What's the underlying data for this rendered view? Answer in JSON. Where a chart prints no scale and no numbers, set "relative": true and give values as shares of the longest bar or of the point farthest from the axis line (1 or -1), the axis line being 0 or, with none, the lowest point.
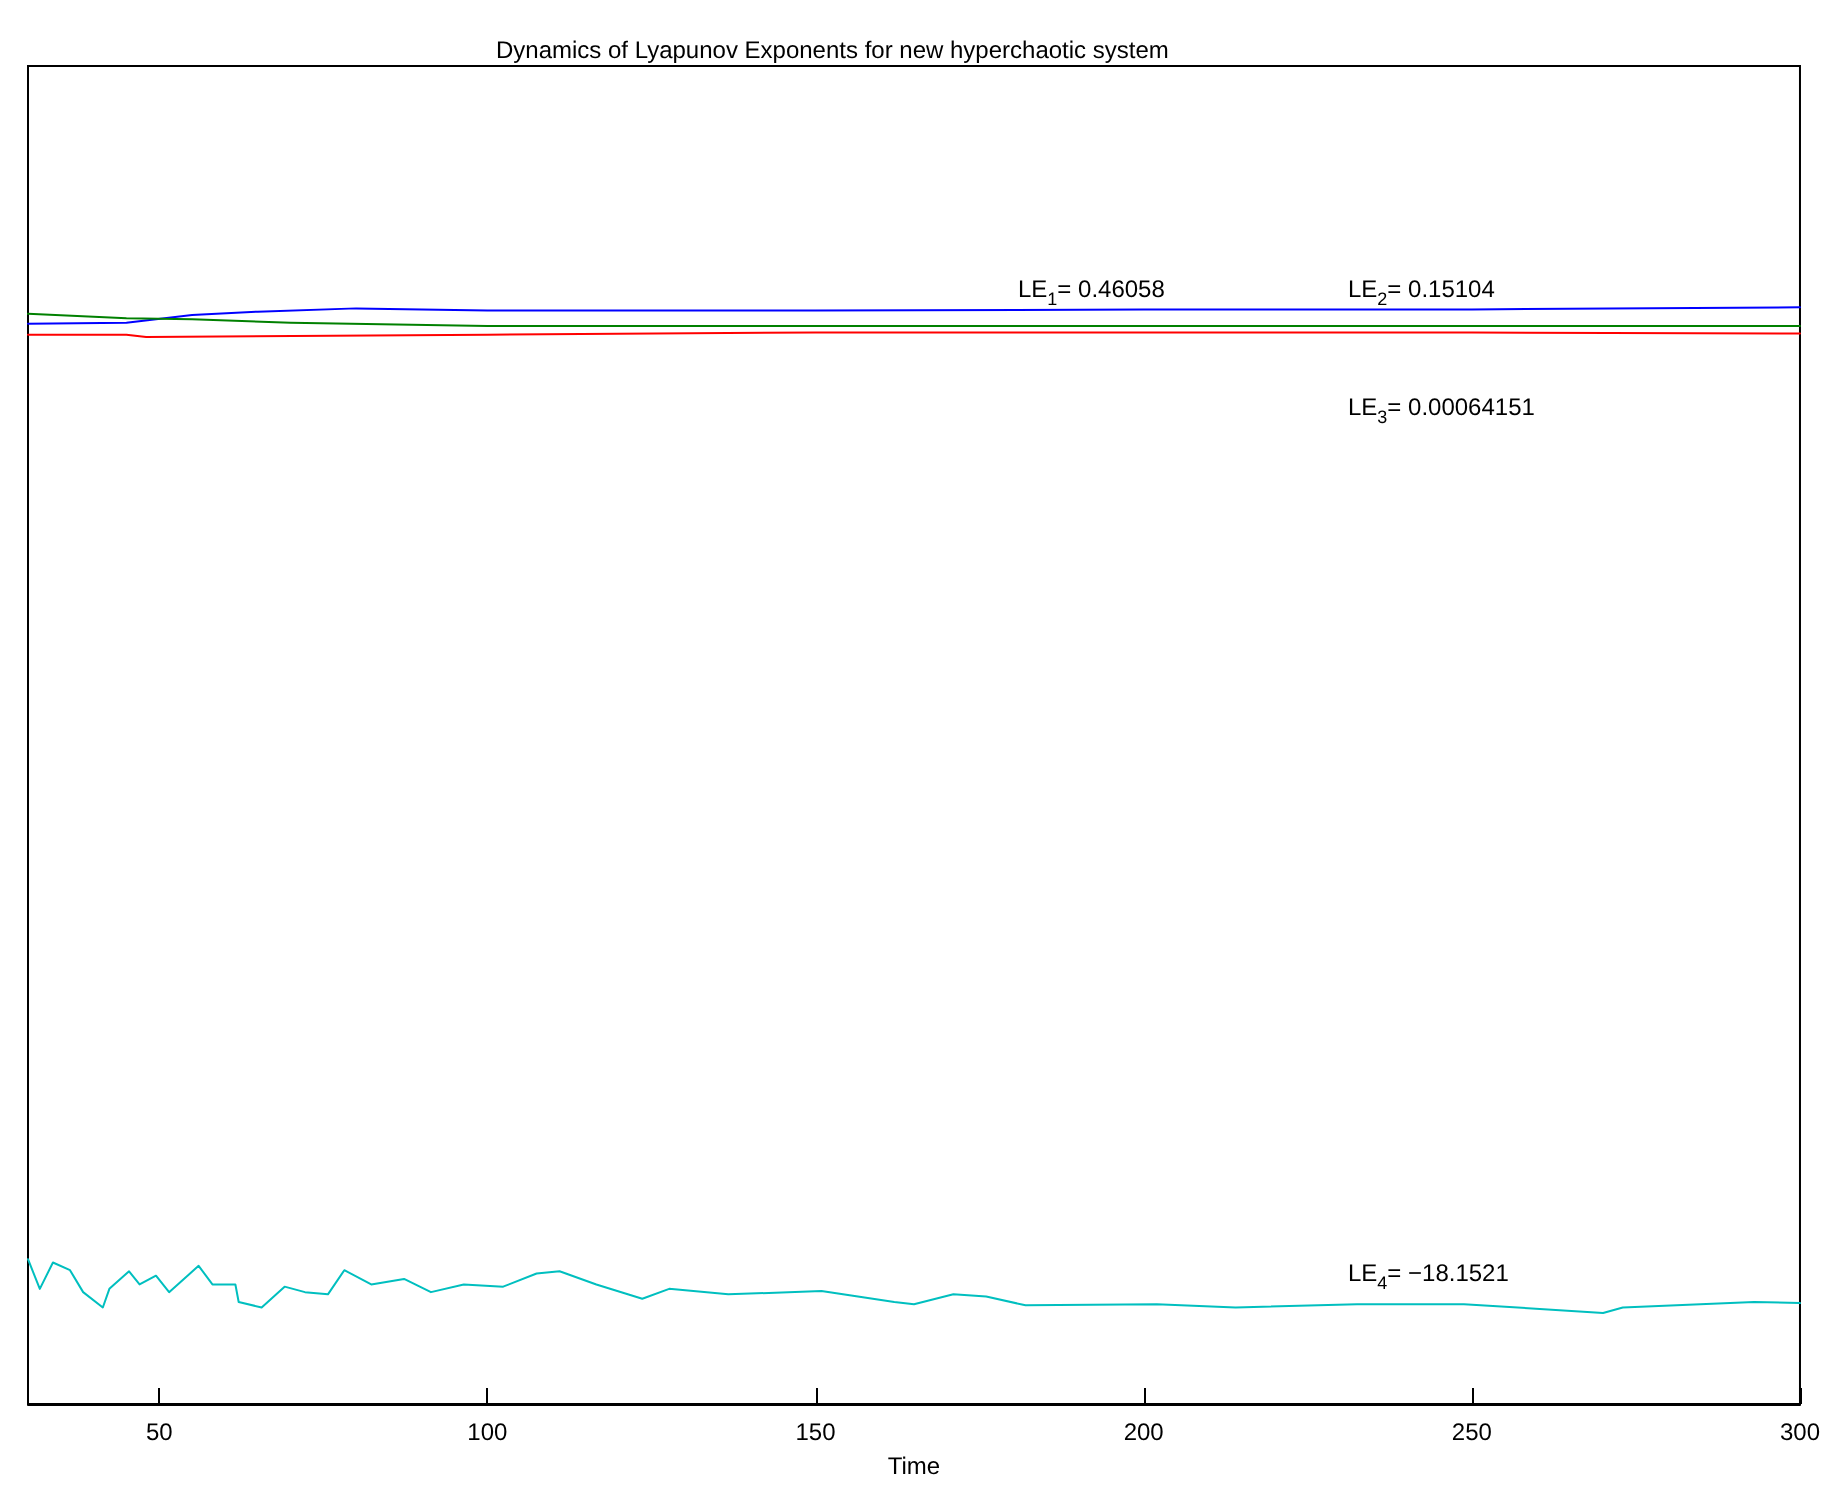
{
  "chart_data": {
    "type": "line",
    "title": "Dynamics of Lyapunov Exponents for new hyperchaotic system",
    "xlabel": "Time",
    "relative": true,
    "xlim": [
      30,
      300
    ],
    "xticks": [
      50,
      100,
      150,
      200,
      250,
      300
    ],
    "grid": false,
    "marker": "none",
    "line_style": "solid",
    "series": [
      {
        "color": "#0000ff",
        "x": [
          30,
          45,
          55,
          65,
          80,
          100,
          150,
          200,
          250,
          300
        ],
        "values": [
          0.985,
          0.986,
          0.993,
          0.996,
          0.999,
          0.997,
          0.997,
          0.998,
          0.998,
          1
        ]
      },
      {
        "color": "#008000",
        "x": [
          30,
          45,
          55,
          70,
          100,
          150,
          200,
          250,
          300
        ],
        "values": [
          0.994,
          0.99,
          0.989,
          0.986,
          0.983,
          0.983,
          0.983,
          0.983,
          0.983
        ]
      },
      {
        "color": "#ff0000",
        "x": [
          30,
          45,
          48,
          100,
          150,
          200,
          250,
          300
        ],
        "values": [
          0.975,
          0.975,
          0.973,
          0.975,
          0.977,
          0.977,
          0.977,
          0.976
        ]
      },
      {
        "color": "#00bfbf",
        "x": [
          30,
          31.8,
          33.8,
          36.4,
          38.4,
          41.4,
          42.4,
          45.4,
          47,
          49.5,
          51.5,
          56,
          58.1,
          61.6,
          62.1,
          65.6,
          69.1,
          72.2,
          75.7,
          78.2,
          82.3,
          87.3,
          91.4,
          96.4,
          102.4,
          107.5,
          111,
          116.6,
          123.6,
          127.7,
          136.7,
          150.9,
          162,
          165,
          171,
          176,
          182,
          202,
          214,
          232.5,
          248.8,
          270,
          273,
          293,
          300
        ],
        "values": [
          0.132,
          0.105,
          0.129,
          0.122,
          0.102,
          0.088,
          0.105,
          0.121,
          0.109,
          0.117,
          0.102,
          0.126,
          0.109,
          0.109,
          0.093,
          0.088,
          0.107,
          0.102,
          0.1,
          0.122,
          0.109,
          0.114,
          0.102,
          0.109,
          0.107,
          0.119,
          0.121,
          0.109,
          0.096,
          0.105,
          0.1,
          0.103,
          0.093,
          0.091,
          0.1,
          0.098,
          0.09,
          0.091,
          0.088,
          0.091,
          0.091,
          0.083,
          0.088,
          0.093,
          0.092
        ]
      }
    ],
    "annotations": [
      "LE$_{1}$= 0.46058",
      "LE$_{2}$= 0.15104",
      "LE$_{3}$= 0.00064151",
      "LE$_{4}$= −18.1521"
    ]
  }
}
